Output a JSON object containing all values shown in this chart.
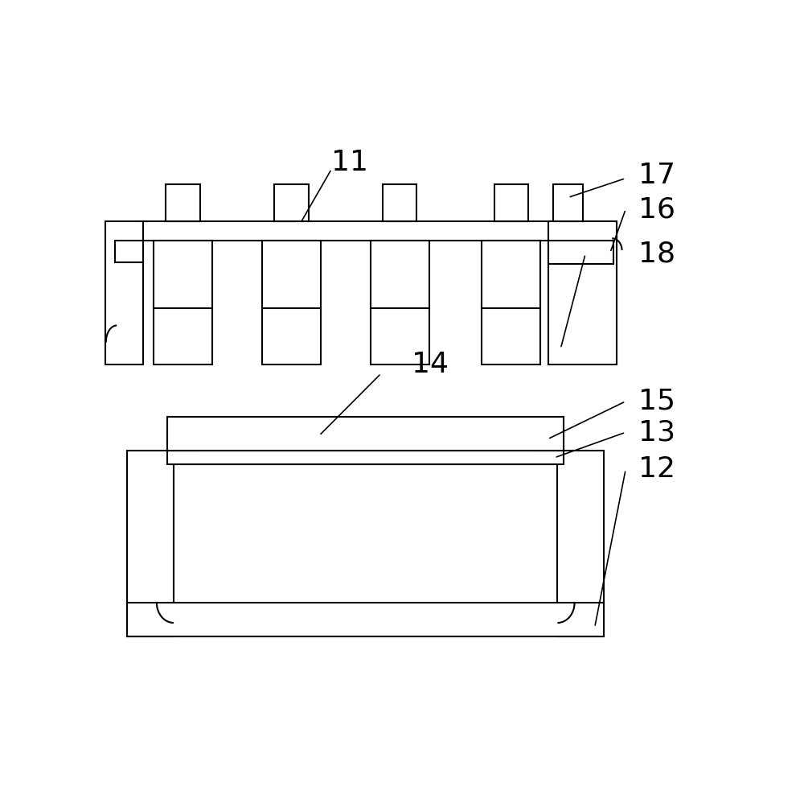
{
  "background_color": "#ffffff",
  "line_color": "#000000",
  "line_width": 1.5,
  "fig_width": 10.0,
  "fig_height": 9.93,
  "label_fontsize": 26
}
